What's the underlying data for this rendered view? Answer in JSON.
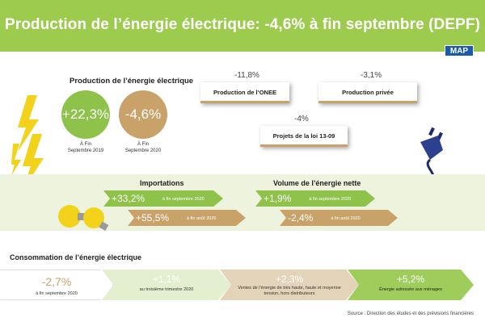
{
  "header": {
    "title": "Production de l’énergie électrique: -4,6% à fin septembre (DEPF)",
    "logo": "MAP"
  },
  "production": {
    "title": "Production de l’énergie électrique",
    "left_value": "+22,3%",
    "left_caption_1": "À Fin",
    "left_caption_2": "Septembre 2019",
    "right_value": "-4,6%",
    "right_caption_1": "À Fin",
    "right_caption_2": "Septembre 2020"
  },
  "breakdown": [
    {
      "pct": "-11,8%",
      "label": "Production de l’ONEE"
    },
    {
      "pct": "-3,1%",
      "label": "Production privée"
    },
    {
      "pct": "-4%",
      "label": "Projets de la loi 13-09"
    }
  ],
  "imports": {
    "title": "Importations",
    "row1_value": "+33,2%",
    "row1_note": "à fin septembre 2020",
    "row2_value": "+55,5%",
    "row2_note": "à fin août 2020"
  },
  "net_volume": {
    "title": "Volume de l’énergie nette",
    "row1_value": "+1,9%",
    "row1_note": "à fin septembre 2020",
    "row2_value": "-2,4%",
    "row2_note": "à fin août 2020"
  },
  "consumption": {
    "title": "Consommation de l’énergie électrique",
    "steps": [
      {
        "value": "-2,7%",
        "text": "à fin septembre 2020"
      },
      {
        "value": "+1,1%",
        "text": "au troisième trimestre 2020"
      },
      {
        "value": "+2,3%",
        "text": "Ventes de l’énergie de très haute, haute et moyenne tension, hors distributeurs"
      },
      {
        "value": "+5,2%",
        "text": "Énergie adressée aux ménages"
      }
    ]
  },
  "source": "Source : Direction des études et des prévisions financières",
  "colors": {
    "green": "#8ec24a",
    "header_green": "#9ccb4e",
    "tan": "#c9a26a",
    "navy": "#1f2b6b",
    "yellow": "#f2d21b"
  },
  "icons": [
    "lightning-bolt-icon",
    "electric-plug-icon",
    "light-bulb-icon"
  ]
}
